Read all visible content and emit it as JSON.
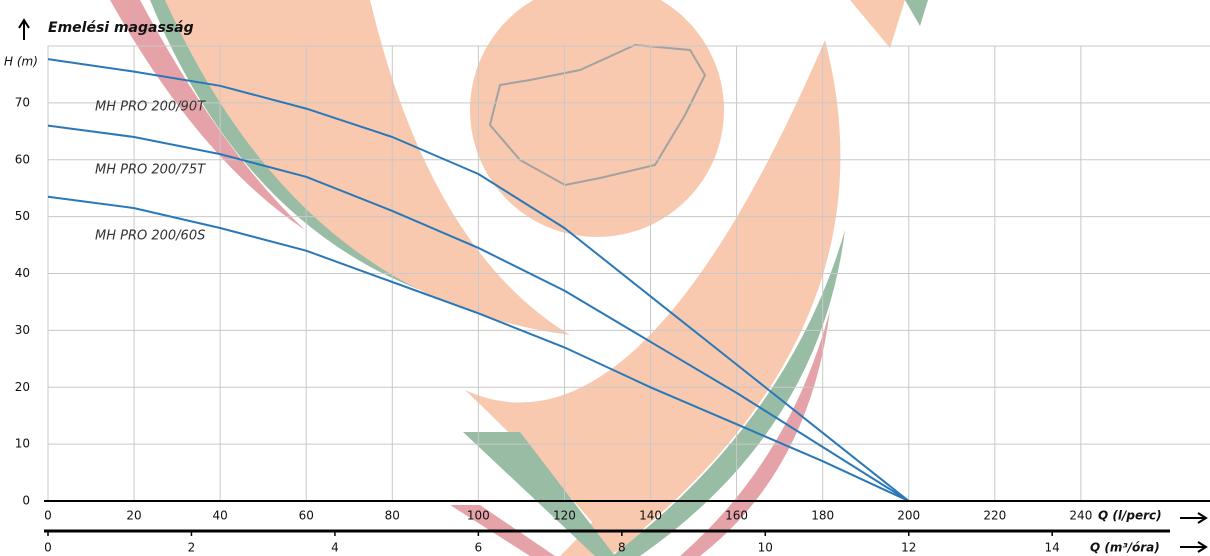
{
  "chart_data": {
    "type": "line",
    "title": "Emelési magasság",
    "y_label": "H (m)",
    "x_label": "Q (l/perc)",
    "x2_label": "Q (m³/óra)",
    "x": [
      0,
      20,
      40,
      60,
      80,
      100,
      120,
      140,
      160,
      180,
      200
    ],
    "series": [
      {
        "name": "MH PRO 200/90T",
        "color": "#2a78b8",
        "values": [
          77.7,
          75.5,
          73,
          69,
          64,
          57.5,
          48,
          36,
          24,
          12,
          0
        ]
      },
      {
        "name": "MH PRO 200/75T",
        "color": "#2a78b8",
        "values": [
          66,
          64,
          61,
          57,
          51,
          44.5,
          37,
          28,
          19,
          9.5,
          0
        ]
      },
      {
        "name": "MH PRO 200/60S",
        "color": "#2a78b8",
        "values": [
          53.5,
          51.5,
          48,
          44,
          38.5,
          33,
          27,
          20,
          13.5,
          7,
          0
        ]
      }
    ],
    "xlim": [
      0,
      270
    ],
    "ylim": [
      0,
      80
    ],
    "x2lim": [
      0,
      16.2
    ],
    "xticks": [
      0,
      20,
      40,
      60,
      80,
      100,
      120,
      140,
      160,
      180,
      200,
      220,
      240
    ],
    "yticks": [
      0,
      10,
      20,
      30,
      40,
      50,
      60,
      70
    ],
    "x2ticks": [
      0,
      2,
      4,
      6,
      8,
      10,
      12,
      14
    ],
    "grid": true
  }
}
